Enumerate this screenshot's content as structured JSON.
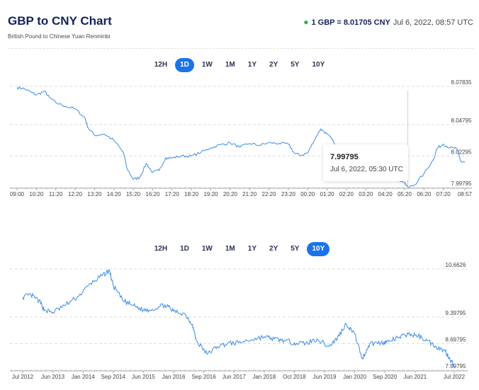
{
  "header": {
    "title": "GBP to CNY Chart",
    "subtitle": "British Pound to Chinese Yuan Renminbi",
    "rate_text": "1 GBP = 8.01705 CNY",
    "rate_time": "Jul 6, 2022, 08:57 UTC"
  },
  "colors": {
    "line": "#3d8ce6",
    "active_button": "#1a73e8",
    "live_dot": "#2bb34a",
    "title": "#13235b"
  },
  "range_buttons_top": [
    {
      "label": "12H",
      "active": false
    },
    {
      "label": "1D",
      "active": true
    },
    {
      "label": "1W",
      "active": false
    },
    {
      "label": "1M",
      "active": false
    },
    {
      "label": "1Y",
      "active": false
    },
    {
      "label": "2Y",
      "active": false
    },
    {
      "label": "5Y",
      "active": false
    },
    {
      "label": "10Y",
      "active": false
    }
  ],
  "range_buttons_bottom": [
    {
      "label": "12H",
      "active": false
    },
    {
      "label": "1D",
      "active": false
    },
    {
      "label": "1W",
      "active": false
    },
    {
      "label": "1M",
      "active": false
    },
    {
      "label": "1Y",
      "active": false
    },
    {
      "label": "2Y",
      "active": false
    },
    {
      "label": "5Y",
      "active": false
    },
    {
      "label": "10Y",
      "active": true
    }
  ],
  "tooltip": {
    "value": "7.99795",
    "time": "Jul 6, 2022, 05:30 UTC"
  },
  "chart_data": [
    {
      "type": "line",
      "title": "",
      "xlabel": "",
      "ylabel": "",
      "y_ticks": [
        "8.07835",
        "8.04795",
        "8.02295",
        "7.99795"
      ],
      "ylim": [
        7.99795,
        8.07835
      ],
      "x_tick_labels": [
        "09:00",
        "10:20",
        "11:20",
        "12:20",
        "13:20",
        "14:20",
        "15:20",
        "16:20",
        "17:20",
        "18:20",
        "19:20",
        "20:20",
        "21:20",
        "22:20",
        "23:20",
        "00:20",
        "01:20",
        "02:20",
        "03:20",
        "04:20",
        "05:20",
        "06:20",
        "07:20",
        "08:57"
      ],
      "grid": true,
      "series": [
        {
          "x": [
            "09:00",
            "09:30",
            "10:00",
            "10:20",
            "10:45",
            "11:00",
            "11:20",
            "11:50",
            "12:20",
            "12:50",
            "13:00",
            "13:20",
            "13:50",
            "14:20",
            "14:50",
            "15:00",
            "15:20",
            "15:40",
            "16:00",
            "16:20",
            "16:40",
            "17:00",
            "17:20",
            "17:50",
            "18:20",
            "18:50",
            "19:20",
            "19:50",
            "20:20",
            "20:50",
            "21:20",
            "21:50",
            "22:20",
            "22:50",
            "23:20",
            "23:40",
            "00:00",
            "00:20",
            "00:40",
            "01:00",
            "01:20",
            "01:40",
            "02:00",
            "02:20",
            "05:20",
            "05:30",
            "05:50",
            "06:20",
            "06:50",
            "07:00",
            "07:20",
            "07:50",
            "08:20",
            "08:40",
            "08:57"
          ],
          "values": [
            8.0775,
            8.0765,
            8.0735,
            8.0715,
            8.0745,
            8.0695,
            8.0655,
            8.0625,
            8.0605,
            8.0535,
            8.0455,
            8.0395,
            8.0405,
            8.0355,
            8.0255,
            8.0135,
            8.0045,
            8.006,
            8.017,
            8.01,
            8.0115,
            8.0215,
            8.0215,
            8.023,
            8.023,
            8.026,
            8.0295,
            8.032,
            8.0335,
            8.03,
            8.033,
            8.0315,
            8.0335,
            8.033,
            8.0325,
            8.025,
            8.0235,
            8.0255,
            8.0355,
            8.0445,
            8.0405,
            8.0345,
            8.0255,
            8.0195,
            8.002,
            7.99795,
            8.0,
            8.009,
            8.0205,
            8.029,
            8.0325,
            8.0295,
            8.029,
            8.0185,
            8.018
          ]
        }
      ]
    },
    {
      "type": "line",
      "title": "",
      "xlabel": "",
      "ylabel": "",
      "y_ticks": [
        "10.6626",
        "9.39795",
        "8.69795",
        "7.99795"
      ],
      "ylim": [
        7.99795,
        10.6626
      ],
      "x_tick_labels": [
        "Jul 2012",
        "Jun 2013",
        "Jan 2014",
        "Sep 2014",
        "Jun 2015",
        "Jan 2016",
        "Sep 2016",
        "Jun 2017",
        "Jan 2018",
        "Oct 2018",
        "Jun 2019",
        "Jan 2020",
        "Sep 2020",
        "Jun 2021",
        "Jul 2022"
      ],
      "grid": true,
      "series": [
        {
          "x": [
            "Jul 2012",
            "Oct 2012",
            "Jan 2013",
            "Mar 2013",
            "Jun 2013",
            "Sep 2013",
            "Dec 2013",
            "Mar 2014",
            "Jun 2014",
            "Aug 2014",
            "Sep 2014",
            "Dec 2014",
            "Mar 2015",
            "Jun 2015",
            "Aug 2015",
            "Nov 2015",
            "Jan 2016",
            "Apr 2016",
            "Jun 2016",
            "Jul 2016",
            "Oct 2016",
            "Jan 2017",
            "Apr 2017",
            "Jul 2017",
            "Oct 2017",
            "Jan 2018",
            "Apr 2018",
            "Jul 2018",
            "Oct 2018",
            "Jan 2019",
            "Apr 2019",
            "Jul 2019",
            "Sep 2019",
            "Nov 2019",
            "Jan 2020",
            "Mar 2020",
            "May 2020",
            "Aug 2020",
            "Oct 2020",
            "Jan 2021",
            "Apr 2021",
            "Jul 2021",
            "Oct 2021",
            "Jan 2022",
            "Apr 2022",
            "Jun 2022",
            "Jul 2022"
          ],
          "values": [
            9.92,
            9.98,
            9.82,
            9.58,
            9.52,
            9.72,
            9.95,
            10.28,
            10.48,
            10.62,
            10.22,
            9.82,
            9.7,
            9.58,
            9.6,
            9.72,
            9.55,
            9.48,
            9.2,
            8.78,
            8.42,
            8.62,
            8.7,
            8.72,
            8.8,
            8.88,
            8.82,
            8.78,
            8.72,
            8.7,
            8.82,
            8.62,
            8.85,
            9.22,
            8.95,
            8.3,
            8.7,
            8.72,
            8.75,
            8.85,
            8.95,
            8.9,
            8.78,
            8.62,
            8.5,
            8.25,
            8.1
          ]
        }
      ]
    }
  ]
}
